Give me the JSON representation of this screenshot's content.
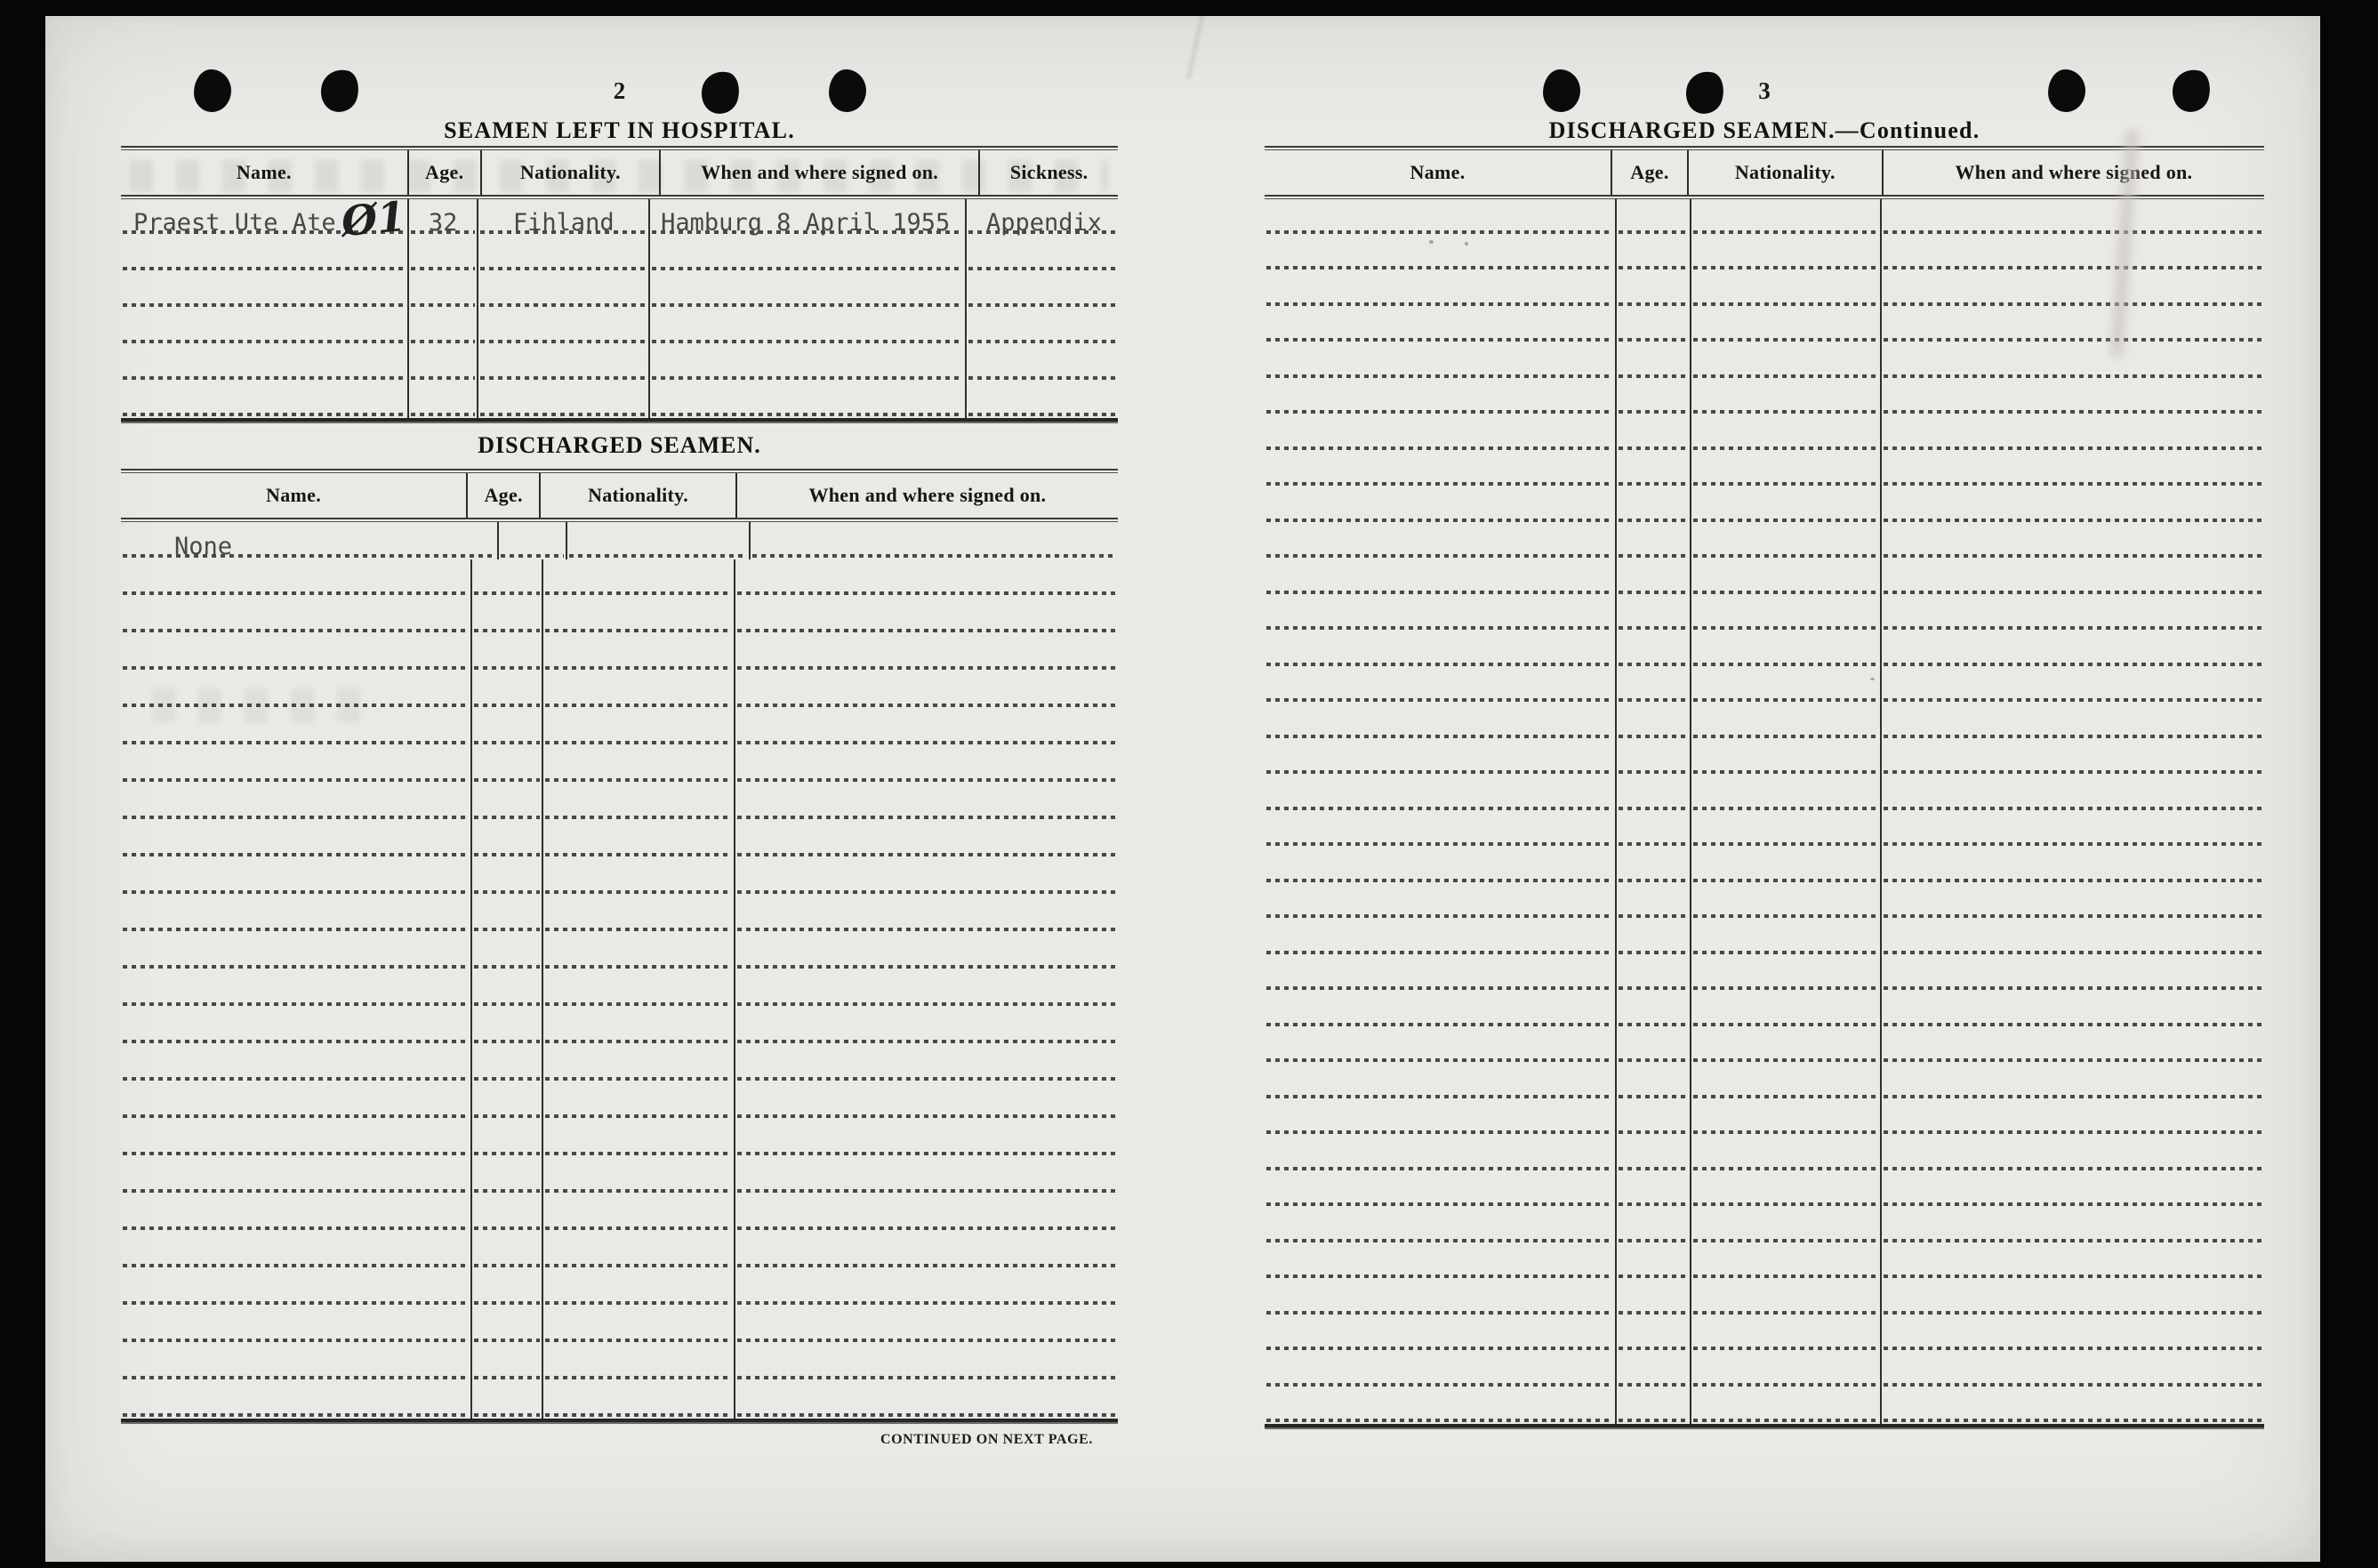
{
  "left_page": {
    "page_number": "2",
    "title": "SEAMEN LEFT IN HOSPITAL.",
    "hospital_table": {
      "headers": [
        "Name.",
        "Age.",
        "Nationality.",
        "When and where signed on.",
        "Sickness."
      ],
      "entries": [
        {
          "name": "Praest Ute Ate",
          "handwritten_mark": "Ø1",
          "age": "32",
          "nationality": "Fihland",
          "signed_on": "Hamburg 8 April 1955",
          "sickness": "Appendix"
        }
      ],
      "empty_rows": 5
    },
    "discharged_heading": "DISCHARGED SEAMEN.",
    "discharged_table": {
      "headers": [
        "Name.",
        "Age.",
        "Nationality.",
        "When and where signed on."
      ],
      "entries": [
        {
          "name": "None",
          "age": "",
          "nationality": "",
          "signed_on": ""
        }
      ],
      "empty_rows": 23
    },
    "continuation_note": "CONTINUED ON NEXT PAGE."
  },
  "right_page": {
    "page_number": "3",
    "title": "DISCHARGED SEAMEN.—Continued.",
    "discharged_table_continued": {
      "headers": [
        "Name.",
        "Age.",
        "Nationality.",
        "When and where signed on."
      ],
      "entries": [],
      "empty_rows": 34
    }
  },
  "colors": {
    "background": "#000000",
    "paper": "#eae9e6",
    "printed_ink": "#151515",
    "typed_ink": "#474747",
    "rule_line": "#2e2e2e"
  }
}
